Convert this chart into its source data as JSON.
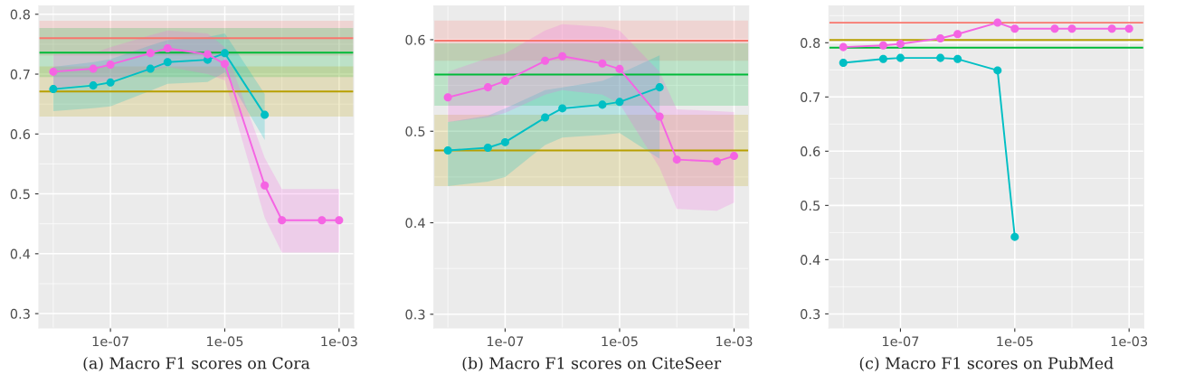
{
  "chart_data": [
    {
      "type": "line",
      "title": "(a) Macro F1 scores on Cora",
      "log": "x",
      "grid": true,
      "marker": "circle",
      "x": [
        1e-08,
        5e-08,
        1e-07,
        5e-07,
        1e-06,
        5e-06,
        1e-05,
        5e-05,
        0.0001,
        0.0005,
        0.001
      ],
      "xlim": [
        5.6e-09,
        0.0018
      ],
      "xticks": [
        {
          "value": 1e-07,
          "label": "1e-07"
        },
        {
          "value": 1e-05,
          "label": "1e-05"
        },
        {
          "value": 0.001,
          "label": "1e-03"
        }
      ],
      "ylim": [
        0.276,
        0.814
      ],
      "yticks": [
        0.3,
        0.4,
        0.5,
        0.6,
        0.7,
        0.8
      ],
      "series": [
        {
          "color": "#00bfc4",
          "values": [
            0.675,
            0.681,
            0.686,
            0.709,
            0.72,
            0.724,
            0.735,
            0.632,
            null,
            null,
            null
          ],
          "lower": [
            0.638,
            0.643,
            0.646,
            0.672,
            0.684,
            0.687,
            0.703,
            0.59,
            null,
            null,
            null
          ],
          "upper": [
            0.712,
            0.72,
            0.725,
            0.748,
            0.757,
            0.762,
            0.768,
            0.667,
            null,
            null,
            null
          ]
        },
        {
          "color": "#f564e3",
          "values": [
            0.704,
            0.709,
            0.716,
            0.735,
            0.743,
            0.733,
            0.717,
            0.514,
            0.456,
            0.456,
            0.456
          ],
          "lower": [
            0.675,
            0.685,
            0.69,
            0.705,
            0.712,
            0.7,
            0.69,
            0.46,
            0.402,
            0.402,
            0.402
          ],
          "upper": [
            0.733,
            0.735,
            0.745,
            0.765,
            0.773,
            0.768,
            0.745,
            0.56,
            0.508,
            0.508,
            0.508
          ]
        }
      ],
      "ref_lines": [
        {
          "axis": "y",
          "value": 0.76,
          "color": "#f8766d"
        },
        {
          "axis": "y",
          "value": 0.736,
          "color": "#00ba38"
        },
        {
          "axis": "y",
          "value": 0.671,
          "color": "#b79f00"
        }
      ],
      "bands": [
        {
          "axis": "y",
          "from": 0.731,
          "to": 0.789,
          "color": "#f8766d"
        },
        {
          "axis": "y",
          "from": 0.695,
          "to": 0.777,
          "color": "#00ba38"
        },
        {
          "axis": "y",
          "from": 0.629,
          "to": 0.713,
          "color": "#b79f00"
        }
      ]
    },
    {
      "type": "line",
      "title": "(b) Macro F1 scores on CiteSeer",
      "log": "x",
      "grid": true,
      "marker": "circle",
      "x": [
        1e-08,
        5e-08,
        1e-07,
        5e-07,
        1e-06,
        5e-06,
        1e-05,
        5e-05,
        0.0001,
        0.0005,
        0.001
      ],
      "xlim": [
        5.7e-09,
        0.0018
      ],
      "xticks": [
        {
          "value": 1e-07,
          "label": "1e-07"
        },
        {
          "value": 1e-05,
          "label": "1e-05"
        },
        {
          "value": 0.001,
          "label": "1e-03"
        }
      ],
      "ylim": [
        0.285,
        0.637
      ],
      "yticks": [
        0.3,
        0.4,
        0.5,
        0.6
      ],
      "series": [
        {
          "color": "#00bfc4",
          "values": [
            0.479,
            0.482,
            0.488,
            0.515,
            0.525,
            0.529,
            0.532,
            0.548,
            null,
            null,
            null
          ],
          "lower": [
            0.44,
            0.445,
            0.45,
            0.485,
            0.493,
            0.496,
            0.498,
            0.47,
            null,
            null,
            null
          ],
          "upper": [
            0.51,
            0.517,
            0.525,
            0.545,
            0.548,
            0.555,
            0.563,
            0.583,
            null,
            null,
            null
          ]
        },
        {
          "color": "#f564e3",
          "values": [
            0.537,
            0.548,
            0.555,
            0.577,
            0.582,
            0.574,
            0.568,
            0.516,
            0.469,
            0.467,
            0.473
          ],
          "lower": [
            0.51,
            0.515,
            0.52,
            0.54,
            0.545,
            0.54,
            0.53,
            0.46,
            0.415,
            0.413,
            0.422
          ],
          "upper": [
            0.565,
            0.58,
            0.585,
            0.61,
            0.617,
            0.614,
            0.61,
            0.565,
            0.524,
            0.522,
            0.521
          ]
        }
      ],
      "ref_lines": [
        {
          "axis": "y",
          "value": 0.599,
          "color": "#f8766d"
        },
        {
          "axis": "y",
          "value": 0.562,
          "color": "#00ba38"
        },
        {
          "axis": "y",
          "value": 0.479,
          "color": "#b79f00"
        }
      ],
      "bands": [
        {
          "axis": "y",
          "from": 0.577,
          "to": 0.621,
          "color": "#f8766d"
        },
        {
          "axis": "y",
          "from": 0.528,
          "to": 0.596,
          "color": "#00ba38"
        },
        {
          "axis": "y",
          "from": 0.44,
          "to": 0.518,
          "color": "#b79f00"
        }
      ]
    },
    {
      "type": "line",
      "title": "(c) Macro F1 scores on PubMed",
      "log": "x",
      "grid": true,
      "marker": "circle",
      "x": [
        1e-08,
        5e-08,
        1e-07,
        5e-07,
        1e-06,
        5e-06,
        1e-05,
        5e-05,
        0.0001,
        0.0005,
        0.001
      ],
      "xlim": [
        5.6e-09,
        0.0018
      ],
      "xticks": [
        {
          "value": 1e-07,
          "label": "1e-07"
        },
        {
          "value": 1e-05,
          "label": "1e-05"
        },
        {
          "value": 0.001,
          "label": "1e-03"
        }
      ],
      "ylim": [
        0.274,
        0.868
      ],
      "yticks": [
        0.3,
        0.4,
        0.5,
        0.6,
        0.7,
        0.8
      ],
      "series": [
        {
          "color": "#00bfc4",
          "values": [
            0.763,
            0.77,
            0.772,
            0.772,
            0.77,
            0.749,
            0.442,
            null,
            null,
            null,
            null
          ]
        },
        {
          "color": "#f564e3",
          "values": [
            0.792,
            0.795,
            0.798,
            0.808,
            0.816,
            0.837,
            0.826,
            0.826,
            0.826,
            0.826,
            0.826
          ]
        }
      ],
      "ref_lines": [
        {
          "axis": "y",
          "value": 0.837,
          "color": "#f8766d"
        },
        {
          "axis": "y",
          "value": 0.805,
          "color": "#b79f00"
        },
        {
          "axis": "y",
          "value": 0.791,
          "color": "#00ba38"
        }
      ]
    }
  ]
}
